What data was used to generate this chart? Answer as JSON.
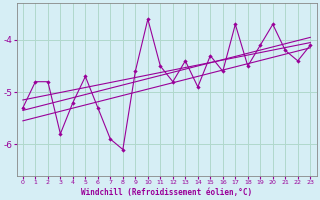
{
  "xlabel": "Windchill (Refroidissement éolien,°C)",
  "bg_color": "#d6eef5",
  "grid_color": "#b0d8cc",
  "line_color": "#990099",
  "xlim": [
    -0.5,
    23.5
  ],
  "ylim": [
    -6.6,
    -3.3
  ],
  "yticks": [
    -6,
    -5,
    -4
  ],
  "xticks": [
    0,
    1,
    2,
    3,
    4,
    5,
    6,
    7,
    8,
    9,
    10,
    11,
    12,
    13,
    14,
    15,
    16,
    17,
    18,
    19,
    20,
    21,
    22,
    23
  ],
  "scatter_x": [
    0,
    1,
    2,
    3,
    4,
    5,
    6,
    7,
    8,
    9,
    10,
    11,
    12,
    13,
    14,
    15,
    16,
    17,
    18,
    19,
    20,
    21,
    22,
    23
  ],
  "scatter_y": [
    -5.3,
    -4.8,
    -4.8,
    -5.8,
    -5.2,
    -4.7,
    -5.3,
    -5.9,
    -6.1,
    -4.6,
    -3.6,
    -4.5,
    -4.8,
    -4.4,
    -4.9,
    -4.3,
    -4.6,
    -3.7,
    -4.5,
    -4.1,
    -3.7,
    -4.2,
    -4.4,
    -4.1
  ],
  "line1_x": [
    0,
    23
  ],
  "line1_y": [
    -5.15,
    -4.05
  ],
  "line2_x": [
    0,
    23
  ],
  "line2_y": [
    -5.35,
    -3.95
  ],
  "line3_x": [
    0,
    23
  ],
  "line3_y": [
    -5.55,
    -4.15
  ]
}
